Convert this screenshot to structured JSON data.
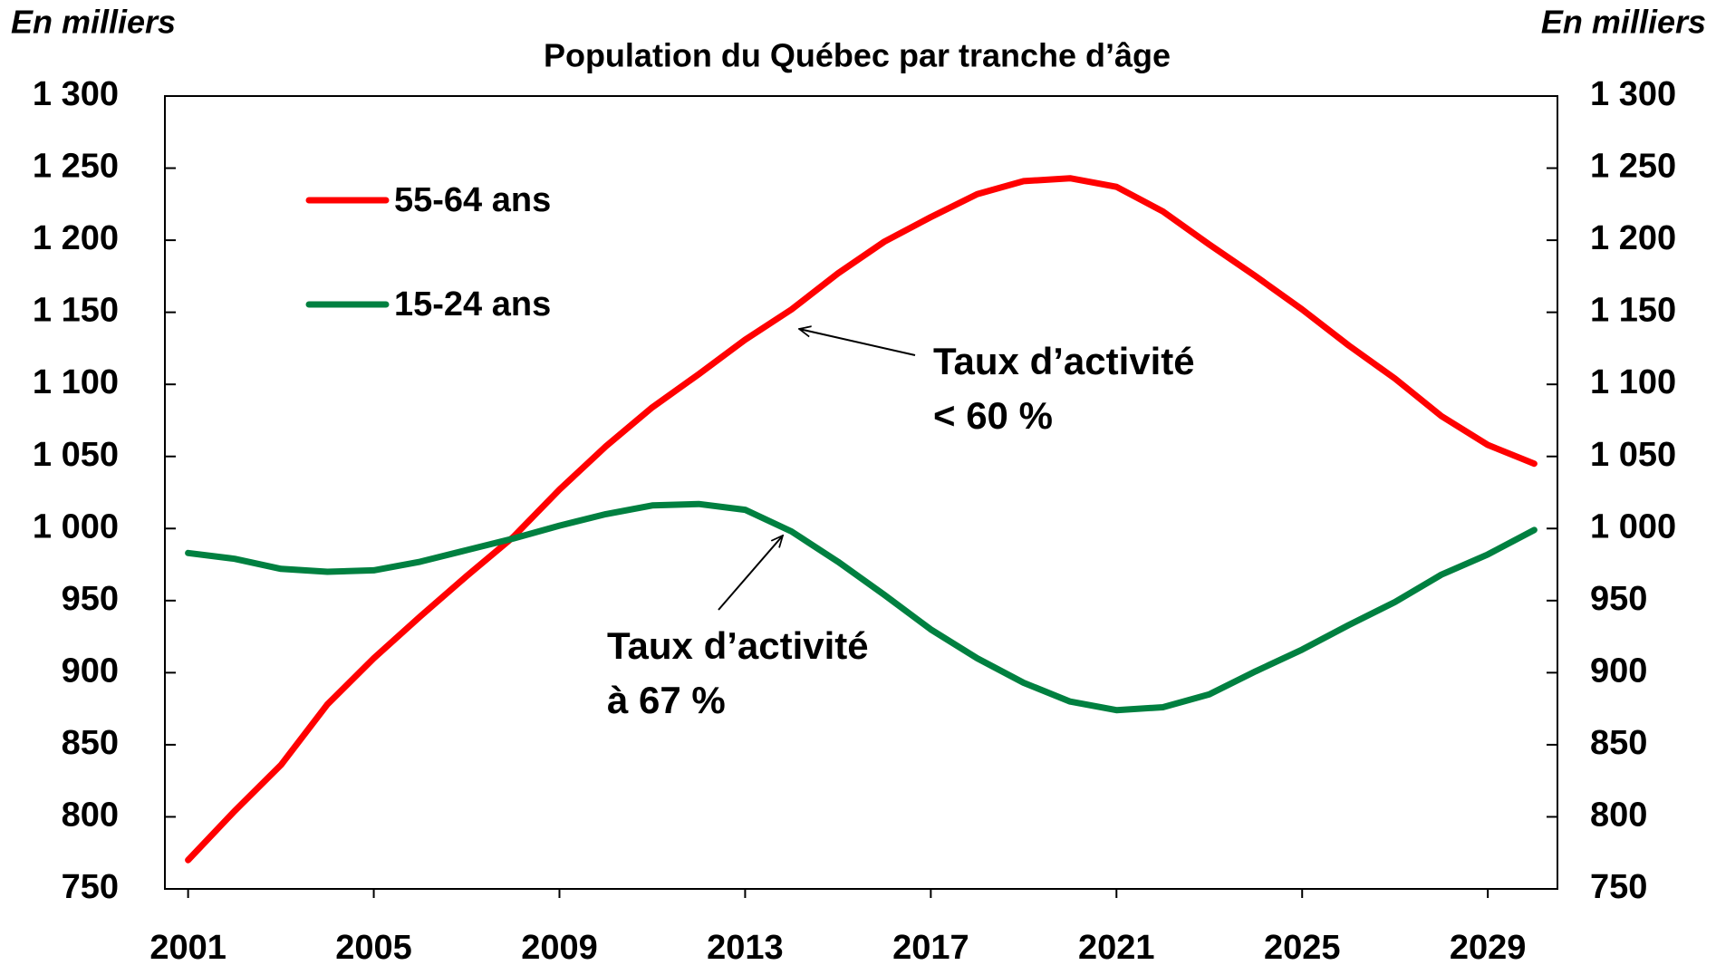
{
  "chart_data": {
    "type": "line",
    "title": "Population du Québec par tranche d’âge",
    "y_label": "En milliers",
    "y2_label": "En milliers",
    "x": [
      2001,
      2002,
      2003,
      2004,
      2005,
      2006,
      2007,
      2008,
      2009,
      2010,
      2011,
      2012,
      2013,
      2014,
      2015,
      2016,
      2017,
      2018,
      2019,
      2020,
      2021,
      2022,
      2023,
      2024,
      2025,
      2026,
      2027,
      2028,
      2029,
      2030
    ],
    "series": [
      {
        "name": "55-64 ans",
        "color": "#ff0000",
        "values": [
          770,
          804,
          836,
          878,
          910,
          939,
          967,
          994,
          1027,
          1057,
          1084,
          1107,
          1131,
          1152,
          1177,
          1199,
          1216,
          1232,
          1241,
          1243,
          1237,
          1220,
          1197,
          1175,
          1152,
          1127,
          1104,
          1078,
          1058,
          1045
        ]
      },
      {
        "name": "15-24 ans",
        "color": "#008040",
        "values": [
          983,
          979,
          972,
          970,
          971,
          977,
          985,
          993,
          1002,
          1010,
          1016,
          1017,
          1013,
          998,
          977,
          954,
          930,
          910,
          893,
          880,
          874,
          876,
          885,
          901,
          916,
          933,
          949,
          968,
          982,
          999
        ]
      }
    ],
    "xlim": [
      2000.5,
      2030.5
    ],
    "xticks": [
      2001,
      2005,
      2009,
      2013,
      2017,
      2021,
      2025,
      2029
    ],
    "ylim": [
      750,
      1300
    ],
    "yticks": [
      750,
      800,
      850,
      900,
      950,
      {
        "value": 1000,
        "label": "1 000"
      },
      {
        "value": 1050,
        "label": "1 050"
      },
      {
        "value": 1100,
        "label": "1 100"
      },
      {
        "value": 1150,
        "label": "1 150"
      },
      {
        "value": 1200,
        "label": "1 200"
      },
      {
        "value": 1250,
        "label": "1 250"
      },
      {
        "value": 1300,
        "label": "1 300"
      }
    ],
    "y2lim": [
      750,
      1300
    ],
    "y2ticks": [
      750,
      800,
      850,
      900,
      950,
      {
        "value": 1000,
        "label": "1 000"
      },
      {
        "value": 1050,
        "label": "1 050"
      },
      {
        "value": 1100,
        "label": "1 100"
      },
      {
        "value": 1150,
        "label": "1 150"
      },
      {
        "value": 1200,
        "label": "1 200"
      },
      {
        "value": 1250,
        "label": "1 250"
      },
      {
        "value": 1300,
        "label": "1 300"
      }
    ],
    "grid": false,
    "legend": "upper left",
    "annotations": [
      {
        "lines": [
          "Taux d’activité",
          "< 60 %"
        ]
      },
      {
        "lines": [
          "Taux d’activité",
          "à 67 %"
        ]
      }
    ]
  }
}
